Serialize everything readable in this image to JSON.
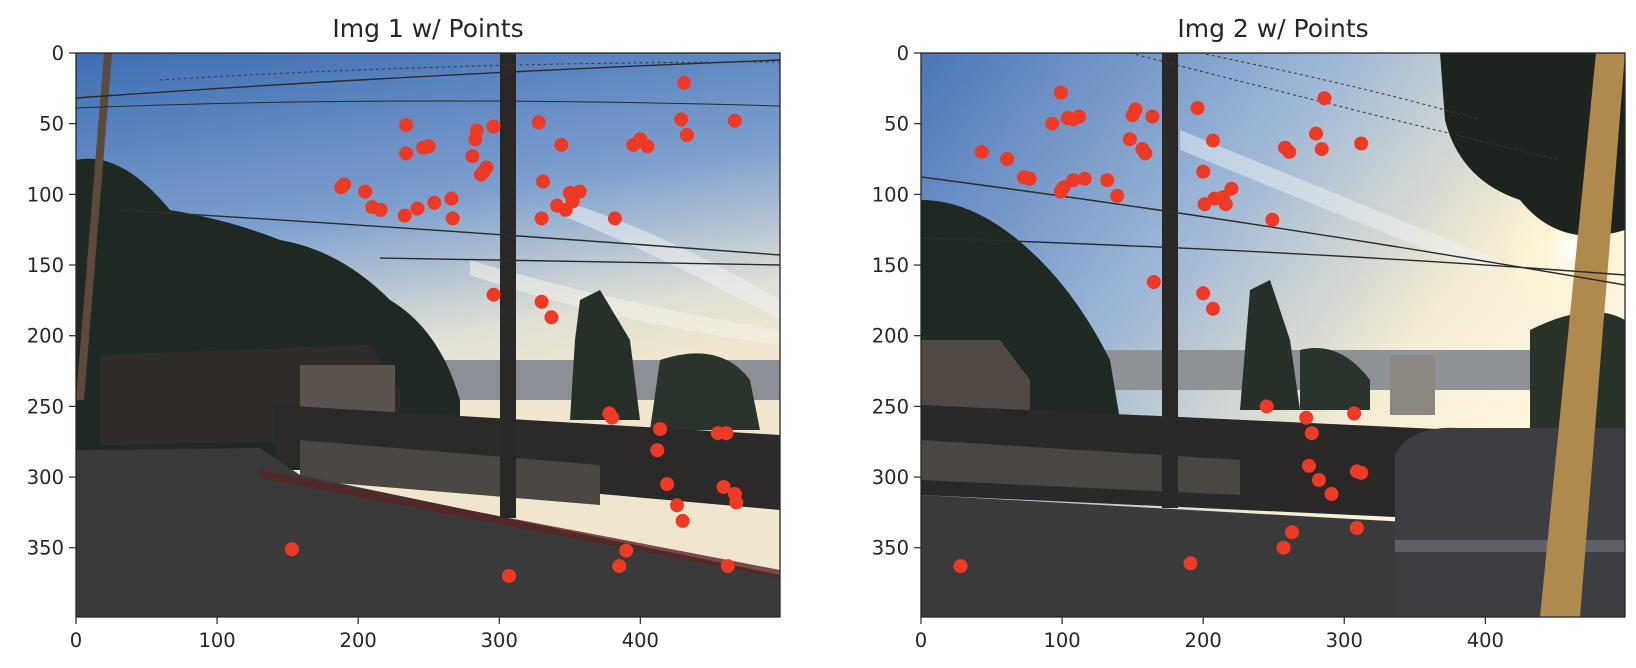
{
  "colors": {
    "point": "#ee3a24",
    "sky_top": "#3f6fb5",
    "sky_bottom": "#e9e4cf",
    "ground": "#3b3b3b",
    "tree": "#1f2923"
  },
  "chart_data": [
    {
      "type": "scatter",
      "title": "Img 1 w/ Points",
      "xlabel": "",
      "ylabel": "",
      "xlim": [
        0,
        499
      ],
      "ylim": [
        399,
        0
      ],
      "y_inverted": true,
      "grid": false,
      "background": "photograph (street scene with utility pole, power lines, fence, trees, sky)",
      "x_ticks": [
        0,
        100,
        200,
        300,
        400
      ],
      "y_ticks": [
        0,
        50,
        100,
        150,
        200,
        250,
        300,
        350
      ],
      "points": [
        [
          431,
          21
        ],
        [
          234,
          51
        ],
        [
          296,
          52
        ],
        [
          284,
          55
        ],
        [
          328,
          49
        ],
        [
          429,
          47
        ],
        [
          467,
          48
        ],
        [
          283,
          61
        ],
        [
          344,
          65
        ],
        [
          395,
          65
        ],
        [
          400,
          61
        ],
        [
          405,
          66
        ],
        [
          433,
          58
        ],
        [
          246,
          67
        ],
        [
          250,
          66
        ],
        [
          234,
          71
        ],
        [
          281,
          73
        ],
        [
          291,
          81
        ],
        [
          289,
          84
        ],
        [
          287,
          86
        ],
        [
          190,
          93
        ],
        [
          188,
          95
        ],
        [
          205,
          98
        ],
        [
          331,
          91
        ],
        [
          357,
          98
        ],
        [
          350,
          99
        ],
        [
          266,
          103
        ],
        [
          254,
          106
        ],
        [
          242,
          110
        ],
        [
          352,
          105
        ],
        [
          341,
          108
        ],
        [
          347,
          111
        ],
        [
          210,
          109
        ],
        [
          216,
          111
        ],
        [
          233,
          115
        ],
        [
          267,
          117
        ],
        [
          330,
          117
        ],
        [
          382,
          117
        ],
        [
          296,
          171
        ],
        [
          330,
          176
        ],
        [
          337,
          187
        ],
        [
          378,
          255
        ],
        [
          380,
          258
        ],
        [
          414,
          266
        ],
        [
          455,
          269
        ],
        [
          461,
          269
        ],
        [
          412,
          281
        ],
        [
          419,
          305
        ],
        [
          459,
          307
        ],
        [
          467,
          312
        ],
        [
          468,
          318
        ],
        [
          426,
          320
        ],
        [
          430,
          331
        ],
        [
          390,
          352
        ],
        [
          153,
          351
        ],
        [
          307,
          370
        ],
        [
          385,
          363
        ],
        [
          462,
          363
        ]
      ]
    },
    {
      "type": "scatter",
      "title": "Img 2 w/ Points",
      "xlabel": "",
      "ylabel": "",
      "xlim": [
        0,
        499
      ],
      "ylim": [
        399,
        0
      ],
      "y_inverted": true,
      "grid": false,
      "background": "photograph (street scene with utility pole, power lines, fence, trees, bright sun, parked truck)",
      "x_ticks": [
        0,
        100,
        200,
        300,
        400
      ],
      "y_ticks": [
        0,
        50,
        100,
        150,
        200,
        250,
        300,
        350
      ],
      "points": [
        [
          99,
          28
        ],
        [
          286,
          32
        ],
        [
          196,
          39
        ],
        [
          152,
          40
        ],
        [
          150,
          44
        ],
        [
          112,
          45
        ],
        [
          108,
          47
        ],
        [
          104,
          46
        ],
        [
          164,
          45
        ],
        [
          93,
          50
        ],
        [
          148,
          61
        ],
        [
          207,
          62
        ],
        [
          280,
          57
        ],
        [
          258,
          67
        ],
        [
          261,
          70
        ],
        [
          284,
          68
        ],
        [
          312,
          64
        ],
        [
          43,
          70
        ],
        [
          61,
          75
        ],
        [
          157,
          68
        ],
        [
          159,
          71
        ],
        [
          73,
          88
        ],
        [
          77,
          89
        ],
        [
          200,
          84
        ],
        [
          132,
          90
        ],
        [
          116,
          89
        ],
        [
          108,
          90
        ],
        [
          101,
          95
        ],
        [
          99,
          98
        ],
        [
          220,
          96
        ],
        [
          214,
          102
        ],
        [
          208,
          103
        ],
        [
          201,
          107
        ],
        [
          216,
          107
        ],
        [
          139,
          101
        ],
        [
          249,
          118
        ],
        [
          165,
          162
        ],
        [
          200,
          170
        ],
        [
          207,
          181
        ],
        [
          245,
          250
        ],
        [
          307,
          255
        ],
        [
          273,
          258
        ],
        [
          277,
          269
        ],
        [
          275,
          292
        ],
        [
          282,
          302
        ],
        [
          291,
          312
        ],
        [
          309,
          296
        ],
        [
          312,
          297
        ],
        [
          263,
          339
        ],
        [
          257,
          350
        ],
        [
          309,
          336
        ],
        [
          28,
          363
        ],
        [
          191,
          361
        ]
      ]
    }
  ]
}
